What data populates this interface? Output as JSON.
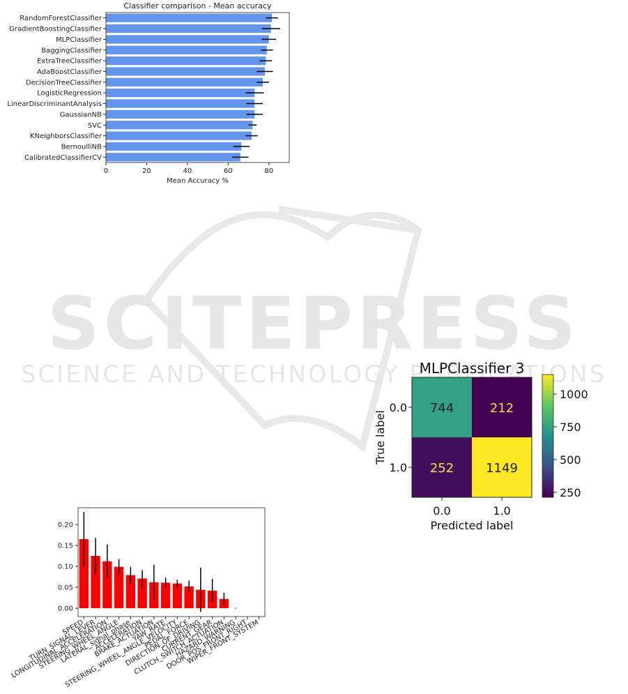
{
  "watermark": {
    "main": "SCITEPRESS",
    "sub": "SCIENCE AND TECHNOLOGY PUBLICATIONS",
    "color": "#e6e6e6"
  },
  "chart_data": [
    {
      "type": "bar",
      "orientation": "horizontal",
      "title": "Classifier comparison - Mean accuracy",
      "xlabel": "Mean Accuracy %",
      "ylabel": "",
      "xlim": [
        0,
        90
      ],
      "xticks": [
        0,
        20,
        40,
        60,
        80
      ],
      "bar_color": "#6495ed",
      "categories": [
        "RandomForestClassifier",
        "GradientBoostingClassifier",
        "MLPClassifier",
        "BaggingClassifier",
        "ExtraTreeClassifier",
        "AdaBoostClassifier",
        "DecisionTreeClassifier",
        "LogisticRegression",
        "LinearDiscriminantAnalysis",
        "GaussianNB",
        "SVC",
        "KNeighborsClassifier",
        "BernoulliNB",
        "CalibratedClassifierCV"
      ],
      "values": [
        81.5,
        81,
        80,
        79,
        78.5,
        78,
        77,
        73,
        73,
        73,
        72,
        71.5,
        66.5,
        66
      ],
      "errors": [
        3,
        4.5,
        3.5,
        3,
        3,
        4,
        3,
        4.5,
        4,
        4,
        2,
        3,
        4,
        4
      ]
    },
    {
      "type": "heatmap",
      "title": "MLPClassifier 3",
      "xlabel": "Predicted label",
      "ylabel": "True label",
      "x_categories": [
        "0.0",
        "1.0"
      ],
      "y_categories": [
        "0.0",
        "1.0"
      ],
      "matrix": [
        [
          744,
          212
        ],
        [
          252,
          1149
        ]
      ],
      "colorbar_ticks": [
        "1000",
        "750",
        "500",
        "250"
      ],
      "colorbar_range": [
        212,
        1149
      ]
    },
    {
      "type": "bar",
      "orientation": "vertical",
      "title": "",
      "xlabel": "",
      "ylabel": "",
      "ylim": [
        -0.02,
        0.24
      ],
      "yticks": [
        "0.00",
        "0.05",
        "0.10",
        "0.15",
        "0.20"
      ],
      "bar_color": "#ff0000",
      "categories": [
        "SPEED",
        "TURN_SIGNAL_LEVER",
        "LONGITUDINAL_ACCELERATION",
        "STEERING_WHEEL_ANGLE",
        "LATERAL_signal_phase",
        "ACCELERATION",
        "BRAKE_ACTUATION",
        "YAW_RATE",
        "STEERING_WHEEL_ANGLE_VELOCITY",
        "PEDAL_FORCE",
        "DIRECTION_OF_DRIVING",
        "CURRENT_GEAR",
        "CLUTCH_SWITCH_ACTUATION",
        "HAZARD_WARNING",
        "DOOR_POS_FRONT_RIGHT",
        "WIPER_FRONT_SYSTEM"
      ],
      "values": [
        0.165,
        0.125,
        0.112,
        0.099,
        0.079,
        0.071,
        0.062,
        0.061,
        0.059,
        0.052,
        0.044,
        0.042,
        0.022,
        0.0,
        0.0,
        0.0
      ],
      "errors": [
        0.065,
        0.043,
        0.04,
        0.018,
        0.02,
        0.02,
        0.042,
        0.012,
        0.009,
        0.014,
        0.053,
        0.028,
        0.015,
        0.0,
        0.0,
        0.0
      ]
    }
  ]
}
